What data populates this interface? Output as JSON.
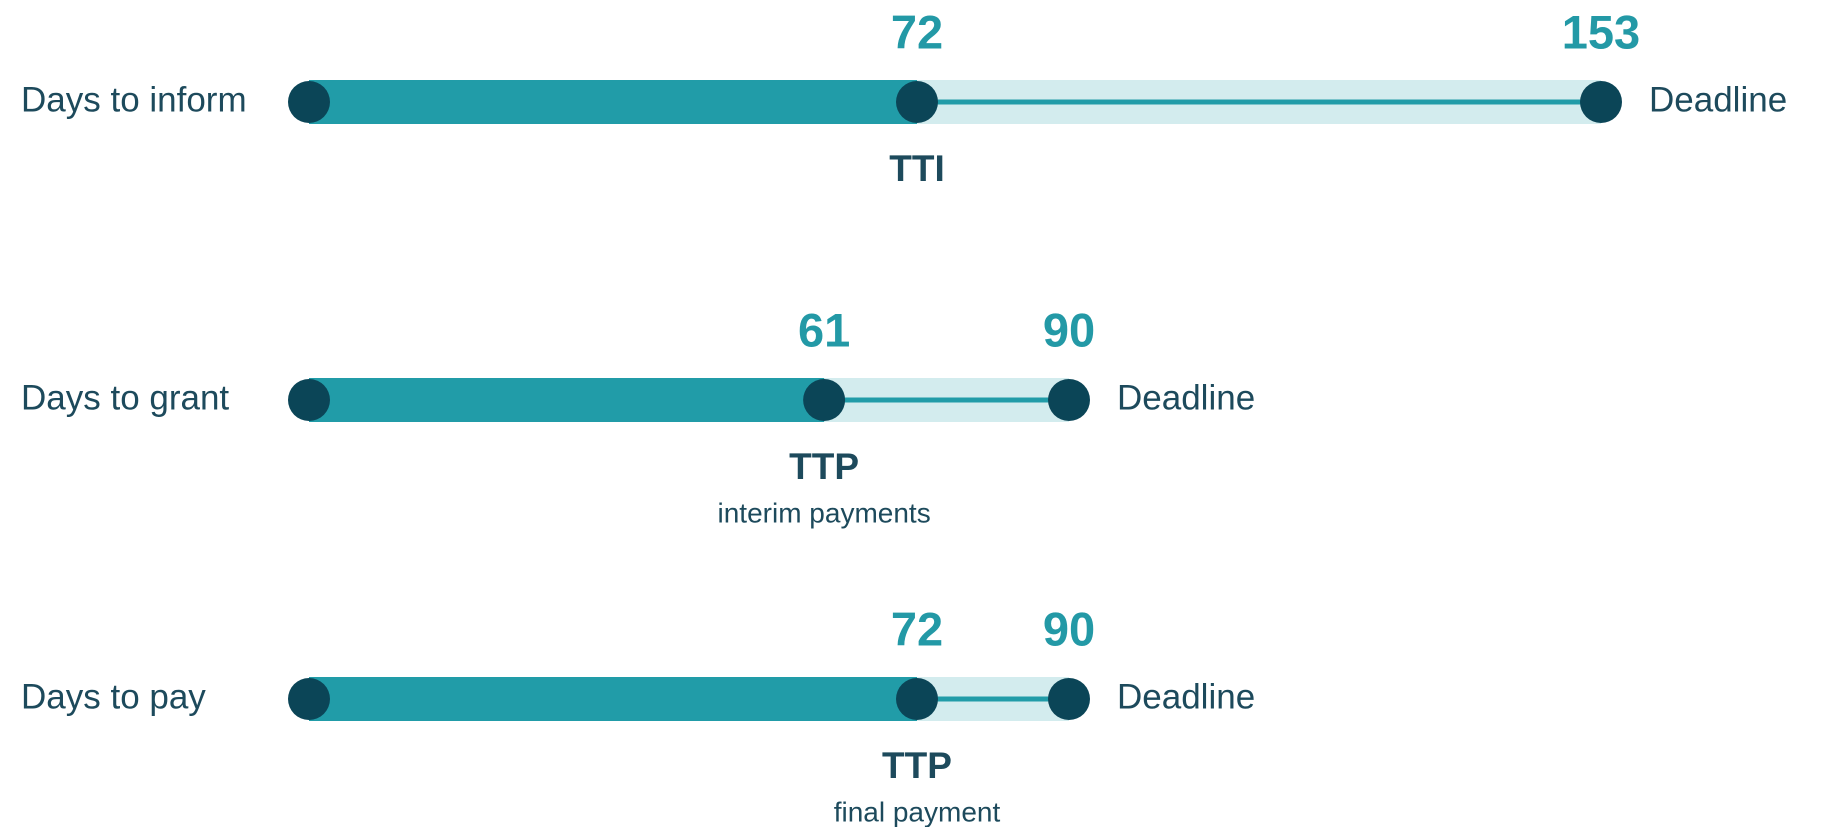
{
  "chart_data": {
    "type": "bullet",
    "categories": [
      "Days to inform",
      "Days to grant",
      "Days to pay"
    ],
    "values": [
      72,
      61,
      72
    ],
    "targets": [
      153,
      90,
      90
    ],
    "target_label": "Deadline",
    "marker_labels": [
      "TTI",
      "TTP",
      "TTP"
    ],
    "marker_sublabels": [
      null,
      "interim payments",
      "final payment"
    ],
    "xlim": [
      0,
      153
    ],
    "color": "#219ca8",
    "track_color": "#d3ecee",
    "dot_color": "#0b4557",
    "value_color": "#2399a6",
    "text_color": "#1d4a5c"
  }
}
